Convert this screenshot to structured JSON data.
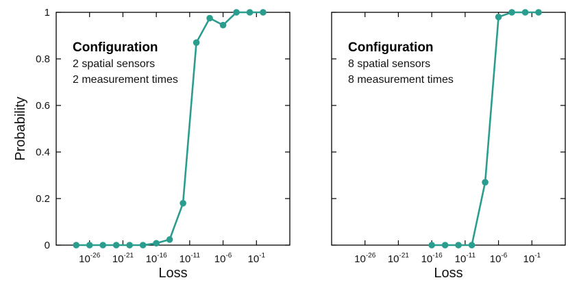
{
  "chart_data": [
    {
      "type": "line",
      "xlabel": "Loss",
      "ylabel": "Probability",
      "x_scale": "log10",
      "xlim_exponent": [
        -31,
        4
      ],
      "ylim": [
        0,
        1
      ],
      "x_ticks": [
        {
          "base": "10",
          "exp": "-26"
        },
        {
          "base": "10",
          "exp": "-21"
        },
        {
          "base": "10",
          "exp": "-16"
        },
        {
          "base": "10",
          "exp": "-11"
        },
        {
          "base": "10",
          "exp": "-6"
        },
        {
          "base": "10",
          "exp": "-1"
        }
      ],
      "y_ticks": [
        "0",
        "0.2",
        "0.4",
        "0.6",
        "0.8",
        "1"
      ],
      "annotation": {
        "title": "Configuration",
        "lines": [
          "2 spatial sensors",
          "2 measurement times"
        ]
      },
      "color": "#2a9d8f",
      "series": [
        {
          "x_exponent": [
            -28,
            -26,
            -24,
            -22,
            -20,
            -18,
            -16,
            -14,
            -12,
            -10,
            -8,
            -6,
            -4,
            -2,
            0
          ],
          "y": [
            0.0,
            0.0,
            0.0,
            0.0,
            0.0,
            0.0,
            0.008,
            0.024,
            0.18,
            0.87,
            0.975,
            0.945,
            1.0,
            1.0,
            1.0
          ]
        }
      ]
    },
    {
      "type": "line",
      "xlabel": "Loss",
      "ylabel": "",
      "x_scale": "log10",
      "xlim_exponent": [
        -31,
        4
      ],
      "ylim": [
        0,
        1
      ],
      "x_ticks": [
        {
          "base": "10",
          "exp": "-26"
        },
        {
          "base": "10",
          "exp": "-21"
        },
        {
          "base": "10",
          "exp": "-16"
        },
        {
          "base": "10",
          "exp": "-11"
        },
        {
          "base": "10",
          "exp": "-6"
        },
        {
          "base": "10",
          "exp": "-1"
        }
      ],
      "y_ticks": [],
      "annotation": {
        "title": "Configuration",
        "lines": [
          "8 spatial sensors",
          "8 measurement times"
        ]
      },
      "color": "#2a9d8f",
      "series": [
        {
          "x_exponent": [
            -16,
            -14,
            -12,
            -10,
            -8,
            -6,
            -4,
            -2,
            0
          ],
          "y": [
            0.0,
            0.0,
            0.0,
            0.0,
            0.27,
            0.98,
            1.0,
            1.0,
            1.0
          ]
        }
      ]
    }
  ]
}
